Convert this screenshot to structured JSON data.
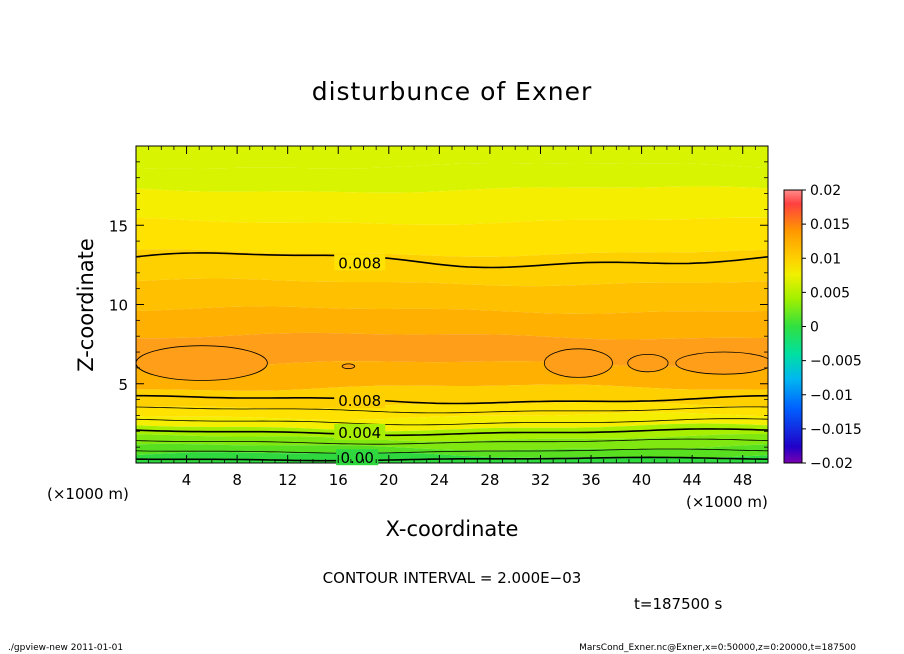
{
  "chart_data": {
    "type": "heatmap",
    "title": "disturbunce of Exner",
    "xlabel": "X-coordinate",
    "ylabel": "Z-coordinate",
    "x_unit": "(×1000 m)",
    "y_unit": "(×1000 m)",
    "xlim": [
      0,
      50
    ],
    "ylim": [
      0,
      20
    ],
    "x_ticks": [
      4,
      8,
      12,
      16,
      20,
      24,
      28,
      32,
      36,
      40,
      44,
      48
    ],
    "y_ticks": [
      5,
      10,
      15
    ],
    "contour_labels": [
      {
        "text": "0.008",
        "x": 17.7,
        "z": 12.6
      },
      {
        "text": "0.008",
        "x": 17.7,
        "z": 3.9
      },
      {
        "text": "0.004",
        "x": 17.7,
        "z": 1.9
      },
      {
        "text": "0.00",
        "x": 17.5,
        "z": 0.3
      }
    ],
    "colorbar": {
      "min": -0.02,
      "max": 0.02,
      "tick_labels": [
        "0.02",
        "0.015",
        "0.01",
        "0.005",
        "0",
        "−0.005",
        "−0.01",
        "−0.015",
        "−0.02"
      ],
      "tick_values": [
        0.02,
        0.015,
        0.01,
        0.005,
        0,
        -0.005,
        -0.01,
        -0.015,
        -0.02
      ]
    },
    "levels": [
      {
        "z": 0.3,
        "value": 0.0
      },
      {
        "z": 0.7,
        "value": 0.002
      },
      {
        "z": 1.3,
        "value": 0.003
      },
      {
        "z": 1.9,
        "value": 0.004
      },
      {
        "z": 2.6,
        "value": 0.006
      },
      {
        "z": 3.3,
        "value": 0.007
      },
      {
        "z": 4.0,
        "value": 0.008
      },
      {
        "z": 5.5,
        "value": 0.0095
      },
      {
        "z": 7.0,
        "value": 0.0105
      },
      {
        "z": 9.0,
        "value": 0.0095
      },
      {
        "z": 10.3,
        "value": 0.009
      },
      {
        "z": 12.5,
        "value": 0.0082
      },
      {
        "z": 14.0,
        "value": 0.0075
      },
      {
        "z": 16.5,
        "value": 0.0065
      },
      {
        "z": 18.0,
        "value": 0.0055
      },
      {
        "z": 19.5,
        "value": 0.005
      }
    ]
  },
  "contour_interval": "CONTOUR INTERVAL = 2.000E−03",
  "time_label": "t=187500 s",
  "footer_left": "./gpview-new   2011-01-01",
  "footer_right": "MarsCond_Exner.nc@Exner,x=0:50000,z=0:20000,t=187500"
}
